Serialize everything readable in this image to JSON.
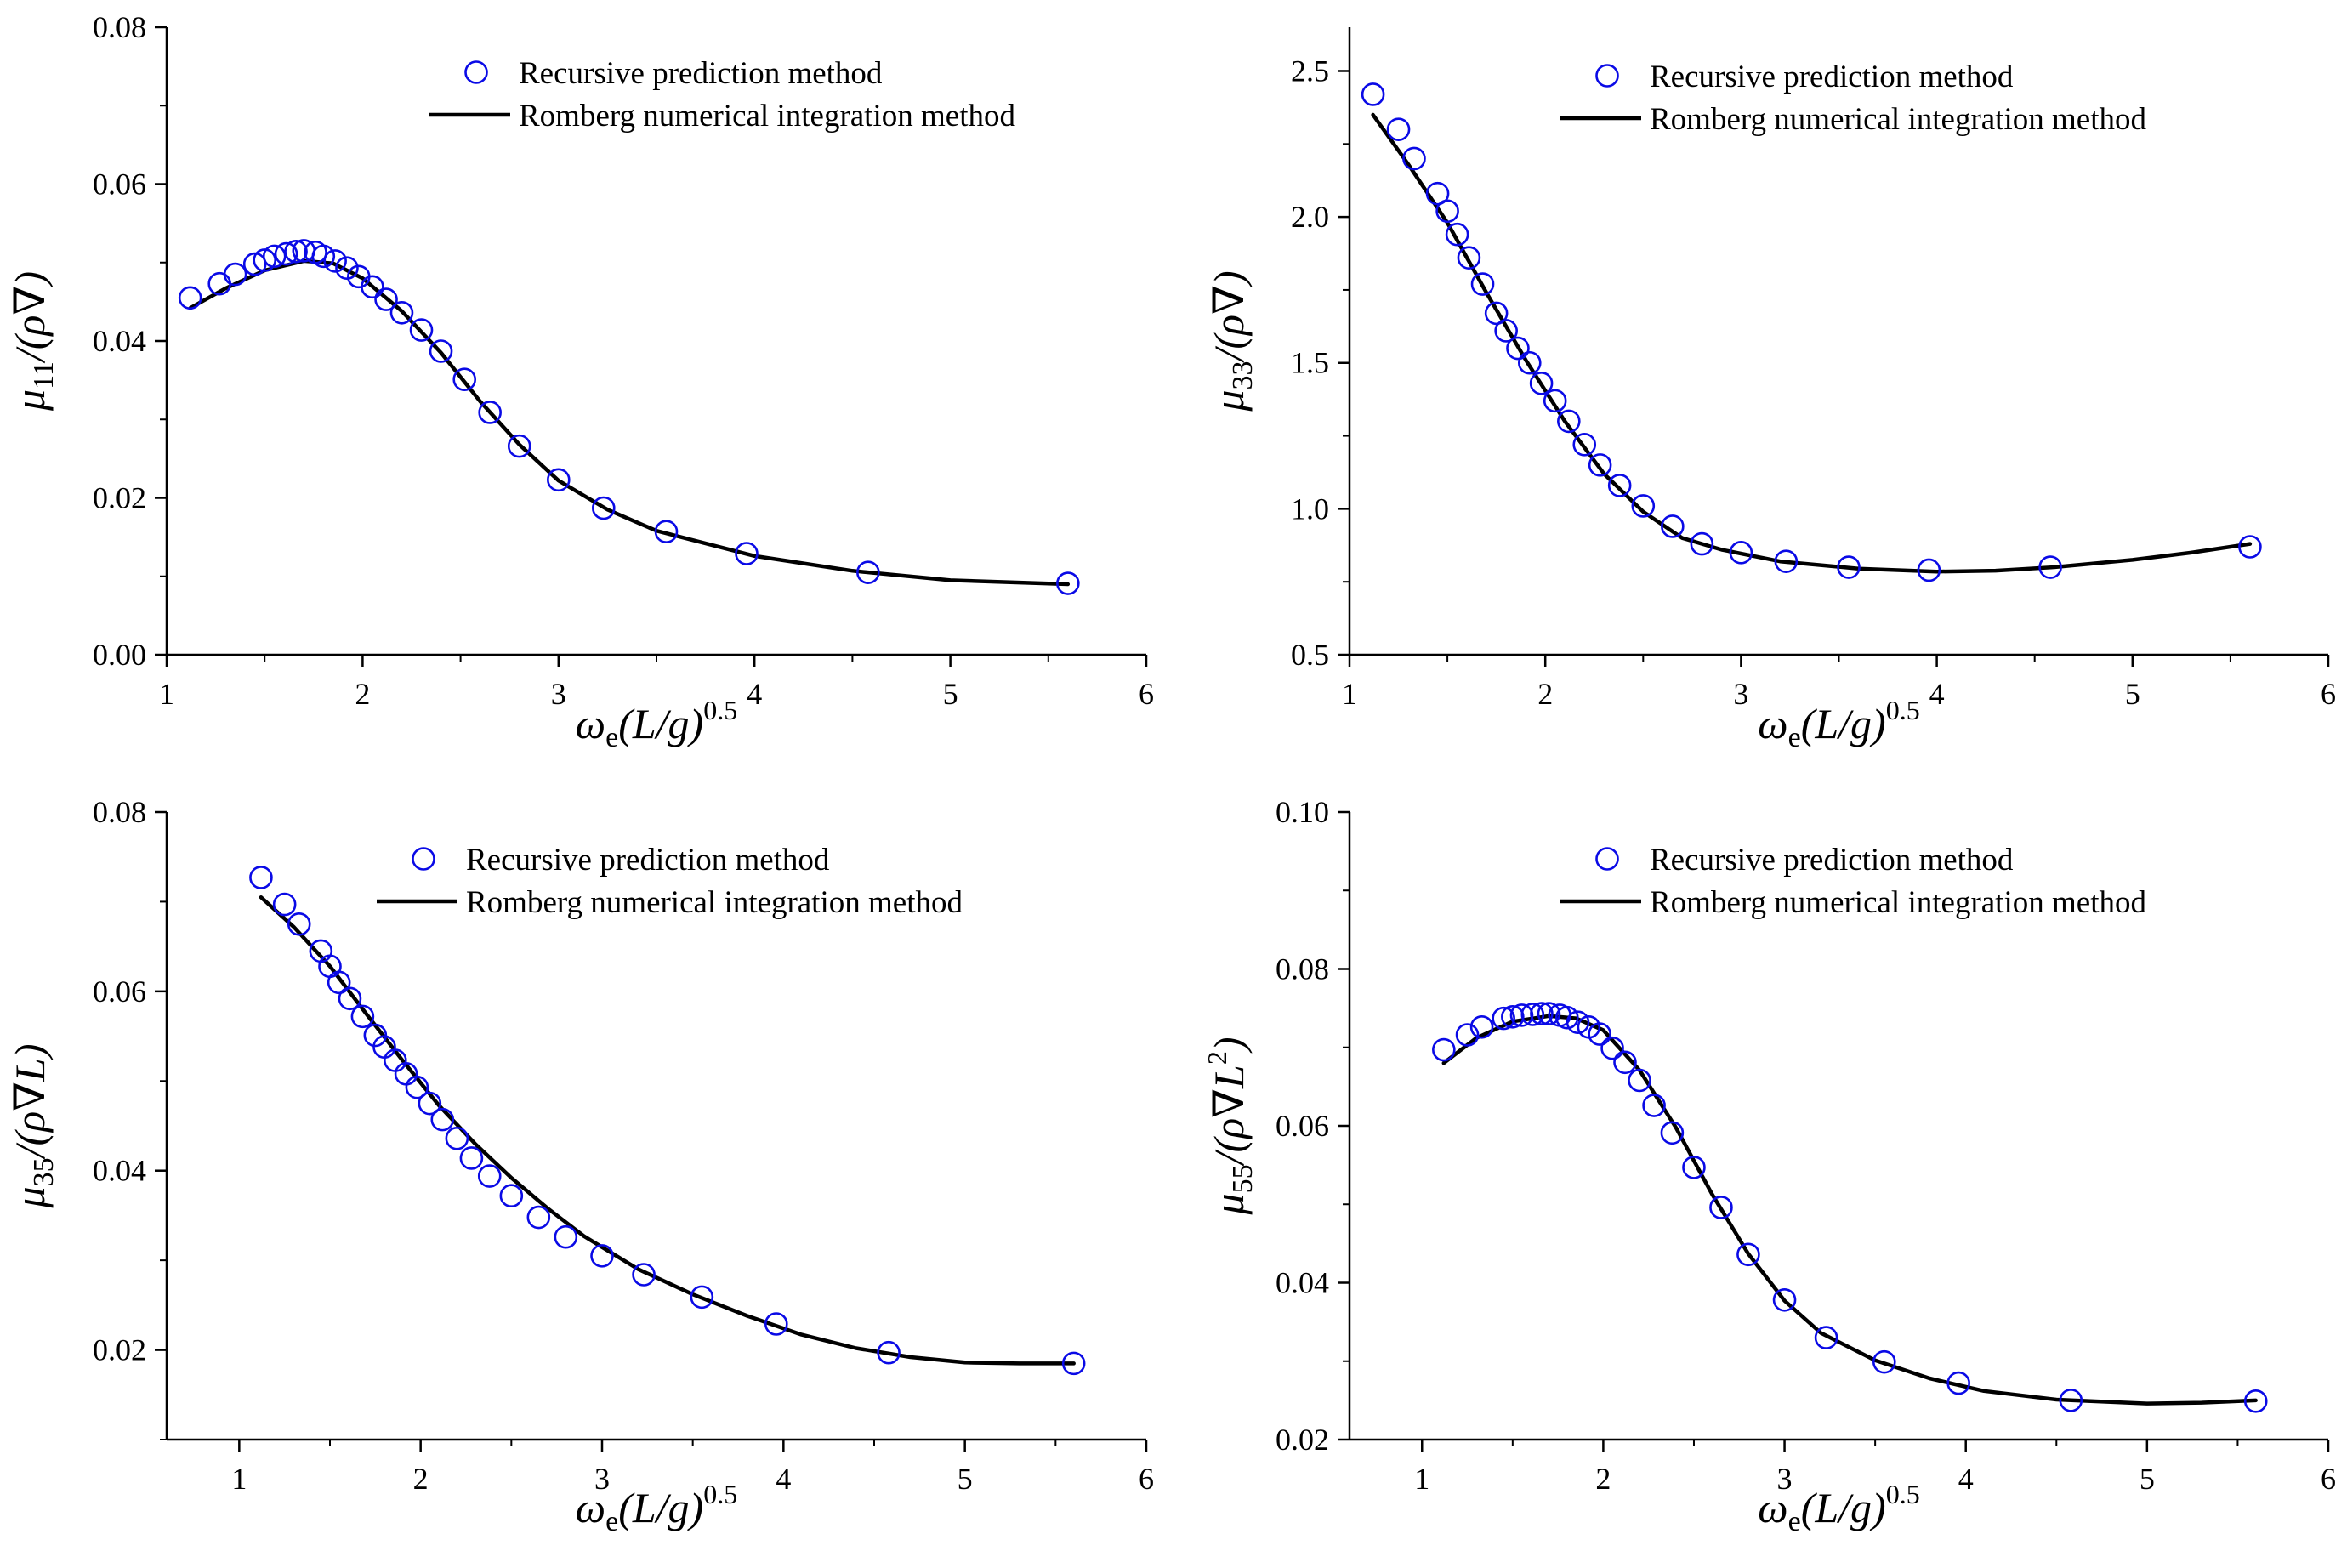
{
  "figure": {
    "panel_count": 4
  },
  "colors": {
    "marker": "#0a0ae6",
    "line": "#000000",
    "axis": "#000000"
  },
  "chart_data": [
    {
      "id": "mu11",
      "type": "line",
      "title": "",
      "xlabel": "ω_e(L/g)^0.5",
      "xlabel_parts": {
        "omega": "ω",
        "sub": "e",
        "body": "(L/g)",
        "sup": "0.5"
      },
      "ylabel": "μ11/(ρ∇)",
      "ylabel_parts": {
        "mu": "μ",
        "sub": "11",
        "body": "/(ρ∇)",
        "sup": ""
      },
      "xlim": [
        1,
        6
      ],
      "ylim": [
        0.0,
        0.08
      ],
      "xticks": [
        1,
        2,
        3,
        4,
        5,
        6
      ],
      "xtick_labels": [
        "1",
        "2",
        "3",
        "4",
        "5",
        "6"
      ],
      "yticks": [
        0.0,
        0.02,
        0.04,
        0.06,
        0.08
      ],
      "ytick_labels": [
        "0.00",
        "0.02",
        "0.04",
        "0.06",
        "0.08"
      ],
      "legend": [
        {
          "label": "Recursive prediction method",
          "kind": "marker"
        },
        {
          "label": "Romberg numerical integration method",
          "kind": "line"
        }
      ],
      "series": [
        {
          "name": "Recursive prediction method",
          "style": "open-circle",
          "x": [
            1.12,
            1.27,
            1.35,
            1.45,
            1.5,
            1.55,
            1.61,
            1.66,
            1.7,
            1.76,
            1.8,
            1.86,
            1.92,
            1.98,
            2.05,
            2.12,
            2.2,
            2.3,
            2.4,
            2.52,
            2.65,
            2.8,
            3.0,
            3.23,
            3.55,
            3.96,
            4.58,
            5.6
          ],
          "y": [
            0.0455,
            0.0473,
            0.0485,
            0.0498,
            0.0503,
            0.0508,
            0.0511,
            0.0514,
            0.0515,
            0.0513,
            0.0508,
            0.0502,
            0.0493,
            0.0482,
            0.0469,
            0.0453,
            0.0436,
            0.0414,
            0.0387,
            0.0351,
            0.0309,
            0.0266,
            0.0223,
            0.0187,
            0.0157,
            0.0129,
            0.0105,
            0.0091
          ]
        },
        {
          "name": "Romberg numerical integration method",
          "style": "solid-line",
          "x": [
            1.12,
            1.3,
            1.5,
            1.7,
            1.85,
            2.0,
            2.2,
            2.4,
            2.6,
            2.8,
            3.0,
            3.25,
            3.5,
            4.0,
            4.5,
            5.0,
            5.6
          ],
          "y": [
            0.0442,
            0.0467,
            0.049,
            0.0502,
            0.0499,
            0.048,
            0.0438,
            0.0385,
            0.0323,
            0.0268,
            0.0222,
            0.0185,
            0.0158,
            0.0126,
            0.0107,
            0.0095,
            0.009
          ]
        }
      ]
    },
    {
      "id": "mu33",
      "type": "line",
      "title": "",
      "xlabel": "ω_e(L/g)^0.5",
      "xlabel_parts": {
        "omega": "ω",
        "sub": "e",
        "body": "(L/g)",
        "sup": "0.5"
      },
      "ylabel": "μ33/(ρ∇)",
      "ylabel_parts": {
        "mu": "μ",
        "sub": "33",
        "body": "/(ρ∇)",
        "sup": ""
      },
      "xlim": [
        1,
        6
      ],
      "ylim": [
        0.5,
        2.65
      ],
      "xticks": [
        1,
        2,
        3,
        4,
        5,
        6
      ],
      "xtick_labels": [
        "1",
        "2",
        "3",
        "4",
        "5",
        "6"
      ],
      "yticks": [
        0.5,
        1.0,
        1.5,
        2.0,
        2.5
      ],
      "ytick_labels": [
        "0.5",
        "1.0",
        "1.5",
        "2.0",
        "2.5"
      ],
      "legend": [
        {
          "label": "Recursive prediction method",
          "kind": "marker"
        },
        {
          "label": "Romberg numerical integration method",
          "kind": "line"
        }
      ],
      "series": [
        {
          "name": "Recursive prediction method",
          "style": "open-circle",
          "x": [
            1.12,
            1.25,
            1.33,
            1.45,
            1.5,
            1.55,
            1.61,
            1.68,
            1.75,
            1.8,
            1.86,
            1.92,
            1.98,
            2.05,
            2.12,
            2.2,
            2.28,
            2.38,
            2.5,
            2.65,
            2.8,
            3.0,
            3.23,
            3.55,
            3.96,
            4.58,
            5.6
          ],
          "y": [
            2.42,
            2.3,
            2.2,
            2.08,
            2.02,
            1.94,
            1.86,
            1.77,
            1.67,
            1.61,
            1.55,
            1.5,
            1.43,
            1.37,
            1.3,
            1.22,
            1.15,
            1.08,
            1.01,
            0.94,
            0.88,
            0.85,
            0.82,
            0.8,
            0.79,
            0.8,
            0.87
          ]
        },
        {
          "name": "Romberg numerical integration method",
          "style": "solid-line",
          "x": [
            1.12,
            1.3,
            1.5,
            1.7,
            1.9,
            2.1,
            2.3,
            2.5,
            2.7,
            2.9,
            3.2,
            3.6,
            4.0,
            4.3,
            4.6,
            5.0,
            5.3,
            5.6
          ],
          "y": [
            2.35,
            2.18,
            1.98,
            1.74,
            1.51,
            1.3,
            1.12,
            0.99,
            0.9,
            0.86,
            0.82,
            0.795,
            0.785,
            0.788,
            0.8,
            0.825,
            0.85,
            0.88
          ]
        }
      ]
    },
    {
      "id": "mu35",
      "type": "line",
      "title": "",
      "xlabel": "ω_e(L/g)^0.5",
      "xlabel_parts": {
        "omega": "ω",
        "sub": "e",
        "body": "(L/g)",
        "sup": "0.5"
      },
      "ylabel": "μ35/(ρ∇L)",
      "ylabel_parts": {
        "mu": "μ",
        "sub": "35",
        "body": "/(ρ∇L)",
        "sup": ""
      },
      "xlim": [
        0.6,
        6
      ],
      "ylim": [
        0.01,
        0.08
      ],
      "xticks": [
        1,
        2,
        3,
        4,
        5,
        6
      ],
      "xtick_labels": [
        "1",
        "2",
        "3",
        "4",
        "5",
        "6"
      ],
      "yticks": [
        0.02,
        0.04,
        0.06,
        0.08
      ],
      "ytick_labels": [
        "0.02",
        "0.04",
        "0.06",
        "0.08"
      ],
      "legend": [
        {
          "label": "Recursive prediction method",
          "kind": "marker"
        },
        {
          "label": "Romberg numerical integration method",
          "kind": "line"
        }
      ],
      "series": [
        {
          "name": "Recursive prediction method",
          "style": "open-circle",
          "x": [
            1.12,
            1.25,
            1.33,
            1.45,
            1.5,
            1.55,
            1.61,
            1.68,
            1.75,
            1.8,
            1.86,
            1.92,
            1.98,
            2.05,
            2.12,
            2.2,
            2.28,
            2.38,
            2.5,
            2.65,
            2.8,
            3.0,
            3.23,
            3.55,
            3.96,
            4.58,
            5.6
          ],
          "y": [
            0.0727,
            0.0697,
            0.0675,
            0.0645,
            0.0628,
            0.061,
            0.0592,
            0.0572,
            0.0551,
            0.0538,
            0.0523,
            0.0508,
            0.0493,
            0.0475,
            0.0457,
            0.0436,
            0.0414,
            0.0394,
            0.0372,
            0.0348,
            0.0326,
            0.0305,
            0.0284,
            0.0259,
            0.0229,
            0.0197,
            0.0185
          ]
        },
        {
          "name": "Romberg numerical integration method",
          "style": "solid-line",
          "x": [
            1.12,
            1.3,
            1.5,
            1.7,
            1.9,
            2.1,
            2.3,
            2.5,
            2.7,
            2.9,
            3.2,
            3.5,
            3.8,
            4.1,
            4.4,
            4.7,
            5.0,
            5.3,
            5.6
          ],
          "y": [
            0.0705,
            0.0672,
            0.0628,
            0.0575,
            0.0523,
            0.0473,
            0.043,
            0.0392,
            0.0358,
            0.0327,
            0.029,
            0.0262,
            0.0238,
            0.0217,
            0.0202,
            0.0192,
            0.0186,
            0.0185,
            0.0185
          ]
        }
      ]
    },
    {
      "id": "mu55",
      "type": "line",
      "title": "",
      "xlabel": "ω_e(L/g)^0.5",
      "xlabel_parts": {
        "omega": "ω",
        "sub": "e",
        "body": "(L/g)",
        "sup": "0.5"
      },
      "ylabel": "μ55/(ρ∇L^2)",
      "ylabel_parts": {
        "mu": "μ",
        "sub": "55",
        "body": "/(ρ∇L",
        "sup": "2",
        "close": ")"
      },
      "xlim": [
        0.6,
        6
      ],
      "ylim": [
        0.02,
        0.1
      ],
      "xticks": [
        1,
        2,
        3,
        4,
        5,
        6
      ],
      "xtick_labels": [
        "1",
        "2",
        "3",
        "4",
        "5",
        "6"
      ],
      "yticks": [
        0.02,
        0.04,
        0.06,
        0.08,
        0.1
      ],
      "ytick_labels": [
        "0.02",
        "0.04",
        "0.06",
        "0.08",
        "0.10"
      ],
      "legend": [
        {
          "label": "Recursive prediction method",
          "kind": "marker"
        },
        {
          "label": "Romberg numerical integration method",
          "kind": "line"
        }
      ],
      "series": [
        {
          "name": "Recursive prediction method",
          "style": "open-circle",
          "x": [
            1.12,
            1.25,
            1.33,
            1.45,
            1.5,
            1.55,
            1.61,
            1.66,
            1.7,
            1.76,
            1.8,
            1.86,
            1.92,
            1.98,
            2.05,
            2.12,
            2.2,
            2.28,
            2.38,
            2.5,
            2.65,
            2.8,
            3.0,
            3.23,
            3.55,
            3.96,
            4.58,
            5.6
          ],
          "y": [
            0.0697,
            0.0716,
            0.0726,
            0.0737,
            0.0739,
            0.0741,
            0.0742,
            0.0743,
            0.0743,
            0.0741,
            0.0738,
            0.0732,
            0.0726,
            0.0717,
            0.0699,
            0.0681,
            0.0658,
            0.0626,
            0.0591,
            0.0547,
            0.0496,
            0.0436,
            0.0378,
            0.033,
            0.0299,
            0.0272,
            0.025,
            0.0249
          ]
        },
        {
          "name": "Romberg numerical integration method",
          "style": "solid-line",
          "x": [
            1.12,
            1.3,
            1.5,
            1.7,
            1.85,
            2.0,
            2.2,
            2.4,
            2.6,
            2.8,
            3.0,
            3.2,
            3.5,
            3.8,
            4.1,
            4.5,
            5.0,
            5.3,
            5.6
          ],
          "y": [
            0.068,
            0.0712,
            0.0733,
            0.074,
            0.0737,
            0.0722,
            0.0671,
            0.0598,
            0.0513,
            0.0437,
            0.0377,
            0.0336,
            0.0301,
            0.0278,
            0.0262,
            0.0251,
            0.0246,
            0.0247,
            0.025
          ]
        }
      ]
    }
  ]
}
